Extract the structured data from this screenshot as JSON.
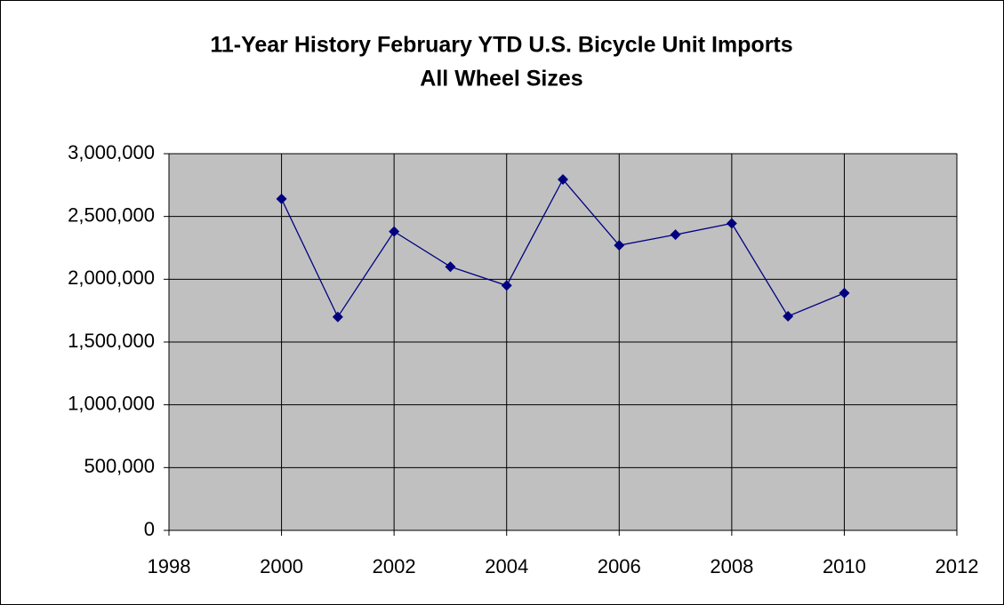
{
  "chart_data": {
    "type": "line",
    "title": "11-Year History February YTD U.S. Bicycle Unit Imports",
    "subtitle": "All Wheel Sizes",
    "x": [
      2000,
      2001,
      2002,
      2003,
      2004,
      2005,
      2006,
      2007,
      2008,
      2009,
      2010
    ],
    "series": [
      {
        "name": "Imports",
        "color": "#000080",
        "values": [
          2640000,
          1700000,
          2380000,
          2100000,
          1950000,
          2795000,
          2270000,
          2355000,
          2445000,
          1705000,
          1890000
        ]
      }
    ],
    "xlim": [
      1998,
      2012
    ],
    "xticks": [
      1998,
      2000,
      2002,
      2004,
      2006,
      2008,
      2010,
      2012
    ],
    "ylim": [
      0,
      3000000
    ],
    "yticks": [
      0,
      {
        "value": 500000,
        "label": "500,000"
      },
      {
        "value": 1000000,
        "label": "1,000,000"
      },
      {
        "value": 1500000,
        "label": "1,500,000"
      },
      {
        "value": 2000000,
        "label": "2,000,000"
      },
      {
        "value": 2500000,
        "label": "2,500,000"
      },
      {
        "value": 3000000,
        "label": "3,000,000"
      }
    ],
    "grid": true,
    "plot_background": "#c0c0c0"
  }
}
